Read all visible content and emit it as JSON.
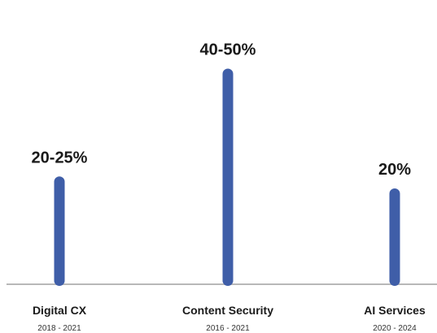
{
  "chart_data": {
    "type": "bar",
    "categories": [
      "Digital CX",
      "Content Security",
      "AI Services"
    ],
    "periods": [
      "2018 - 2021",
      "2016 - 2021",
      "2020 - 2024"
    ],
    "value_labels": [
      "20-25%",
      "40-50%",
      "20%"
    ],
    "values": [
      22.5,
      45,
      20
    ],
    "ylim": [
      0,
      50
    ],
    "grid": false,
    "title": "",
    "xlabel": "",
    "ylabel": ""
  },
  "colors": {
    "bar": "#3f5ea8",
    "baseline": "#b8b8b8",
    "label": "#1a1a1a",
    "period": "#333333"
  }
}
